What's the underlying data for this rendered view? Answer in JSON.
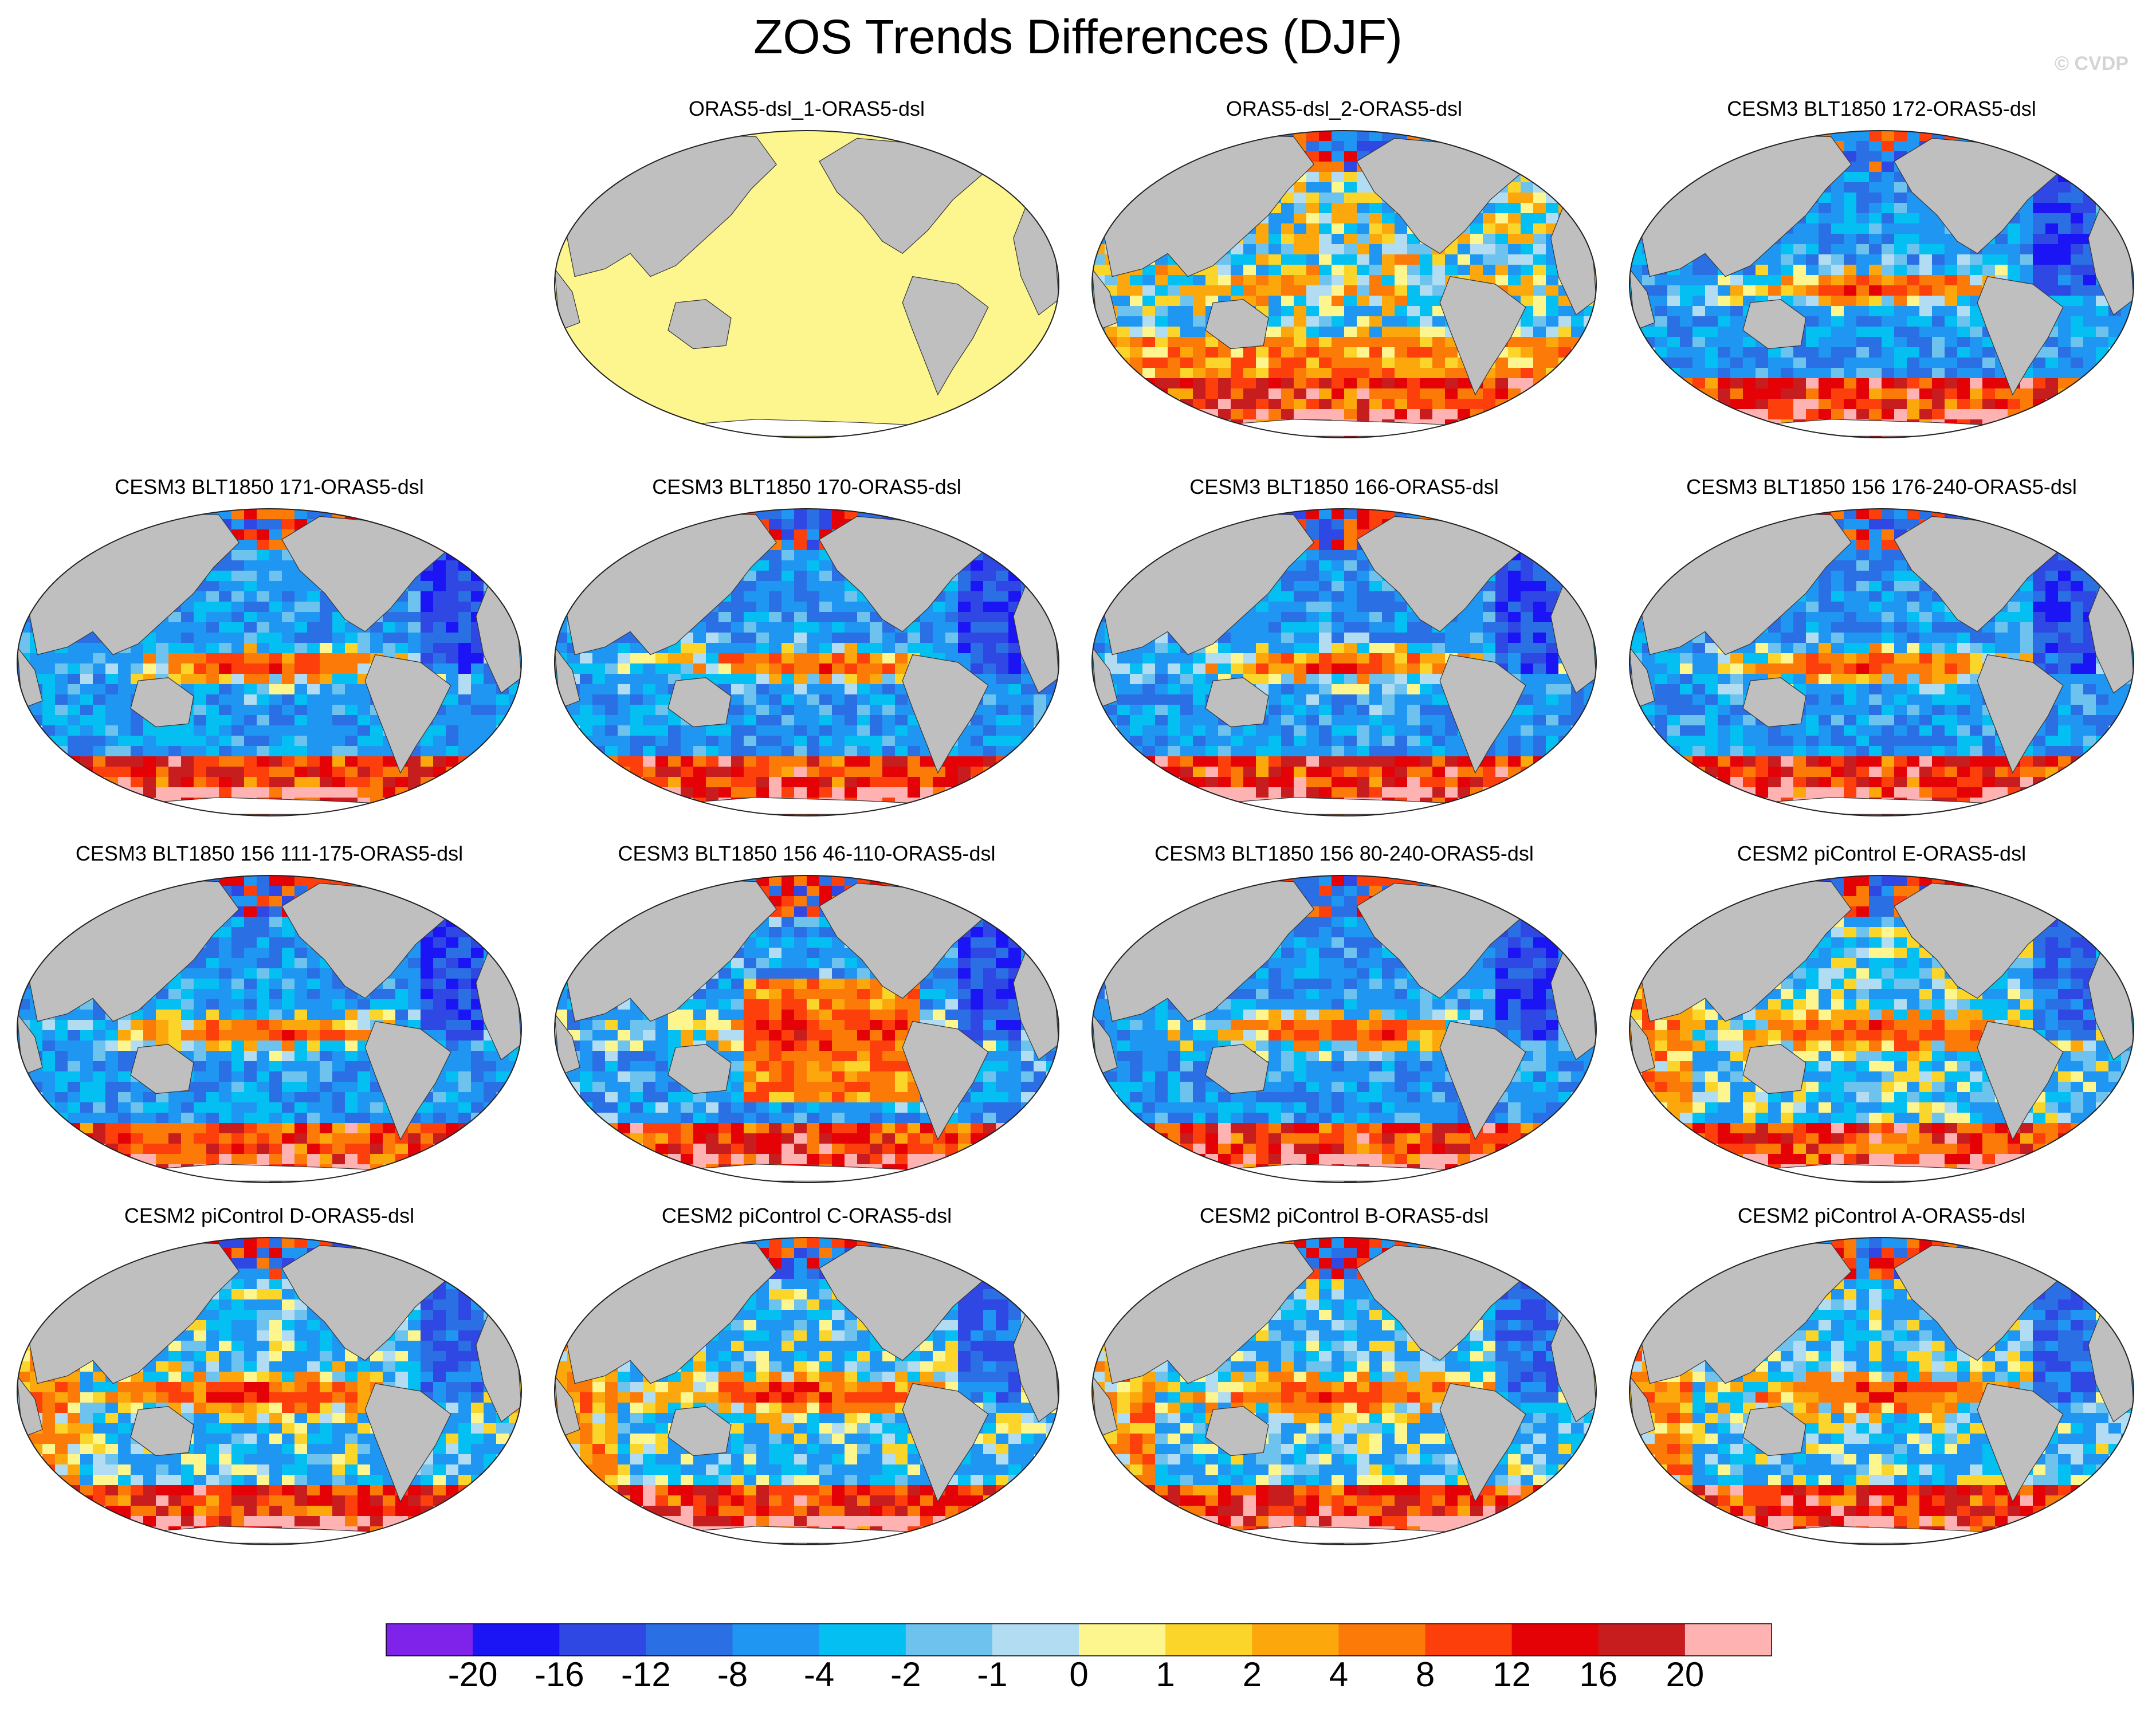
{
  "title": "ZOS Trends Differences (DJF)",
  "watermark": "© CVDP",
  "chart_data": {
    "type": "heatmap",
    "map_projection": "Robinson (Pacific-centred)",
    "grid": false,
    "colorbar": {
      "placement": "bottom",
      "labels": [
        "-20",
        "-16",
        "-12",
        "-8",
        "-4",
        "-2",
        "-1",
        "0",
        "1",
        "2",
        "4",
        "8",
        "12",
        "16",
        "20"
      ],
      "colors": [
        "#7f22ea",
        "#1b14f5",
        "#2f48e3",
        "#2b6fe4",
        "#1f96f2",
        "#04bff2",
        "#6ec3ee",
        "#b2dcf1",
        "#fdf58e",
        "#fcd52b",
        "#fca80c",
        "#fc7a08",
        "#fc3f0b",
        "#e50207",
        "#c81d1f",
        "#ffb2b2"
      ]
    },
    "panels": [
      {
        "title": "ORAS5-dsl_1-ORAS5-dsl",
        "pattern": "zero"
      },
      {
        "title": "ORAS5-dsl_2-ORAS5-dsl",
        "pattern": "mixed"
      },
      {
        "title": "CESM3 BLT1850 172-ORAS5-dsl",
        "pattern": "cesm3"
      },
      {
        "title": "CESM3 BLT1850 171-ORAS5-dsl",
        "pattern": "cesm3"
      },
      {
        "title": "CESM3 BLT1850 170-ORAS5-dsl",
        "pattern": "cesm3"
      },
      {
        "title": "CESM3 BLT1850 166-ORAS5-dsl",
        "pattern": "cesm3"
      },
      {
        "title": "CESM3 BLT1850 156 176-240-ORAS5-dsl",
        "pattern": "cesm3"
      },
      {
        "title": "CESM3 BLT1850 156 111-175-ORAS5-dsl",
        "pattern": "cesm3"
      },
      {
        "title": "CESM3 BLT1850 156 46-110-ORAS5-dsl",
        "pattern": "warm"
      },
      {
        "title": "CESM3 BLT1850 156 80-240-ORAS5-dsl",
        "pattern": "cesm3"
      },
      {
        "title": "CESM2 piControl E-ORAS5-dsl",
        "pattern": "cesm2"
      },
      {
        "title": "CESM2 piControl D-ORAS5-dsl",
        "pattern": "cesm2"
      },
      {
        "title": "CESM2 piControl C-ORAS5-dsl",
        "pattern": "cesm2"
      },
      {
        "title": "CESM2 piControl B-ORAS5-dsl",
        "pattern": "cesm2"
      },
      {
        "title": "CESM2 piControl A-ORAS5-dsl",
        "pattern": "cesm2"
      }
    ]
  }
}
